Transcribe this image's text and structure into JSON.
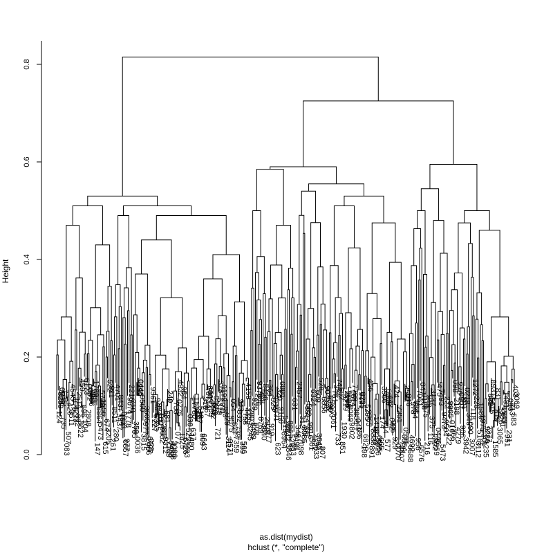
{
  "chart_data": {
    "type": "dendrogram",
    "title": "",
    "xlabel": "as.dist(mydist)",
    "sub": "hclust (*, \"complete\")",
    "ylabel": "Height",
    "ylim": [
      0,
      0.8
    ],
    "yticks": [
      0.0,
      0.2,
      0.4,
      0.6,
      0.8
    ],
    "ytick_labels": [
      "0.0",
      "0.2",
      "0.4",
      "0.6",
      "0.8"
    ],
    "merge_heights": {
      "root": 0.815,
      "left_cluster": 0.53,
      "right_cluster": 0.725,
      "right_a": 0.59,
      "right_b": 0.595
    },
    "n_leaves": 330,
    "leaf_labels_overplotted": true,
    "grid": false,
    "legend": "none"
  }
}
